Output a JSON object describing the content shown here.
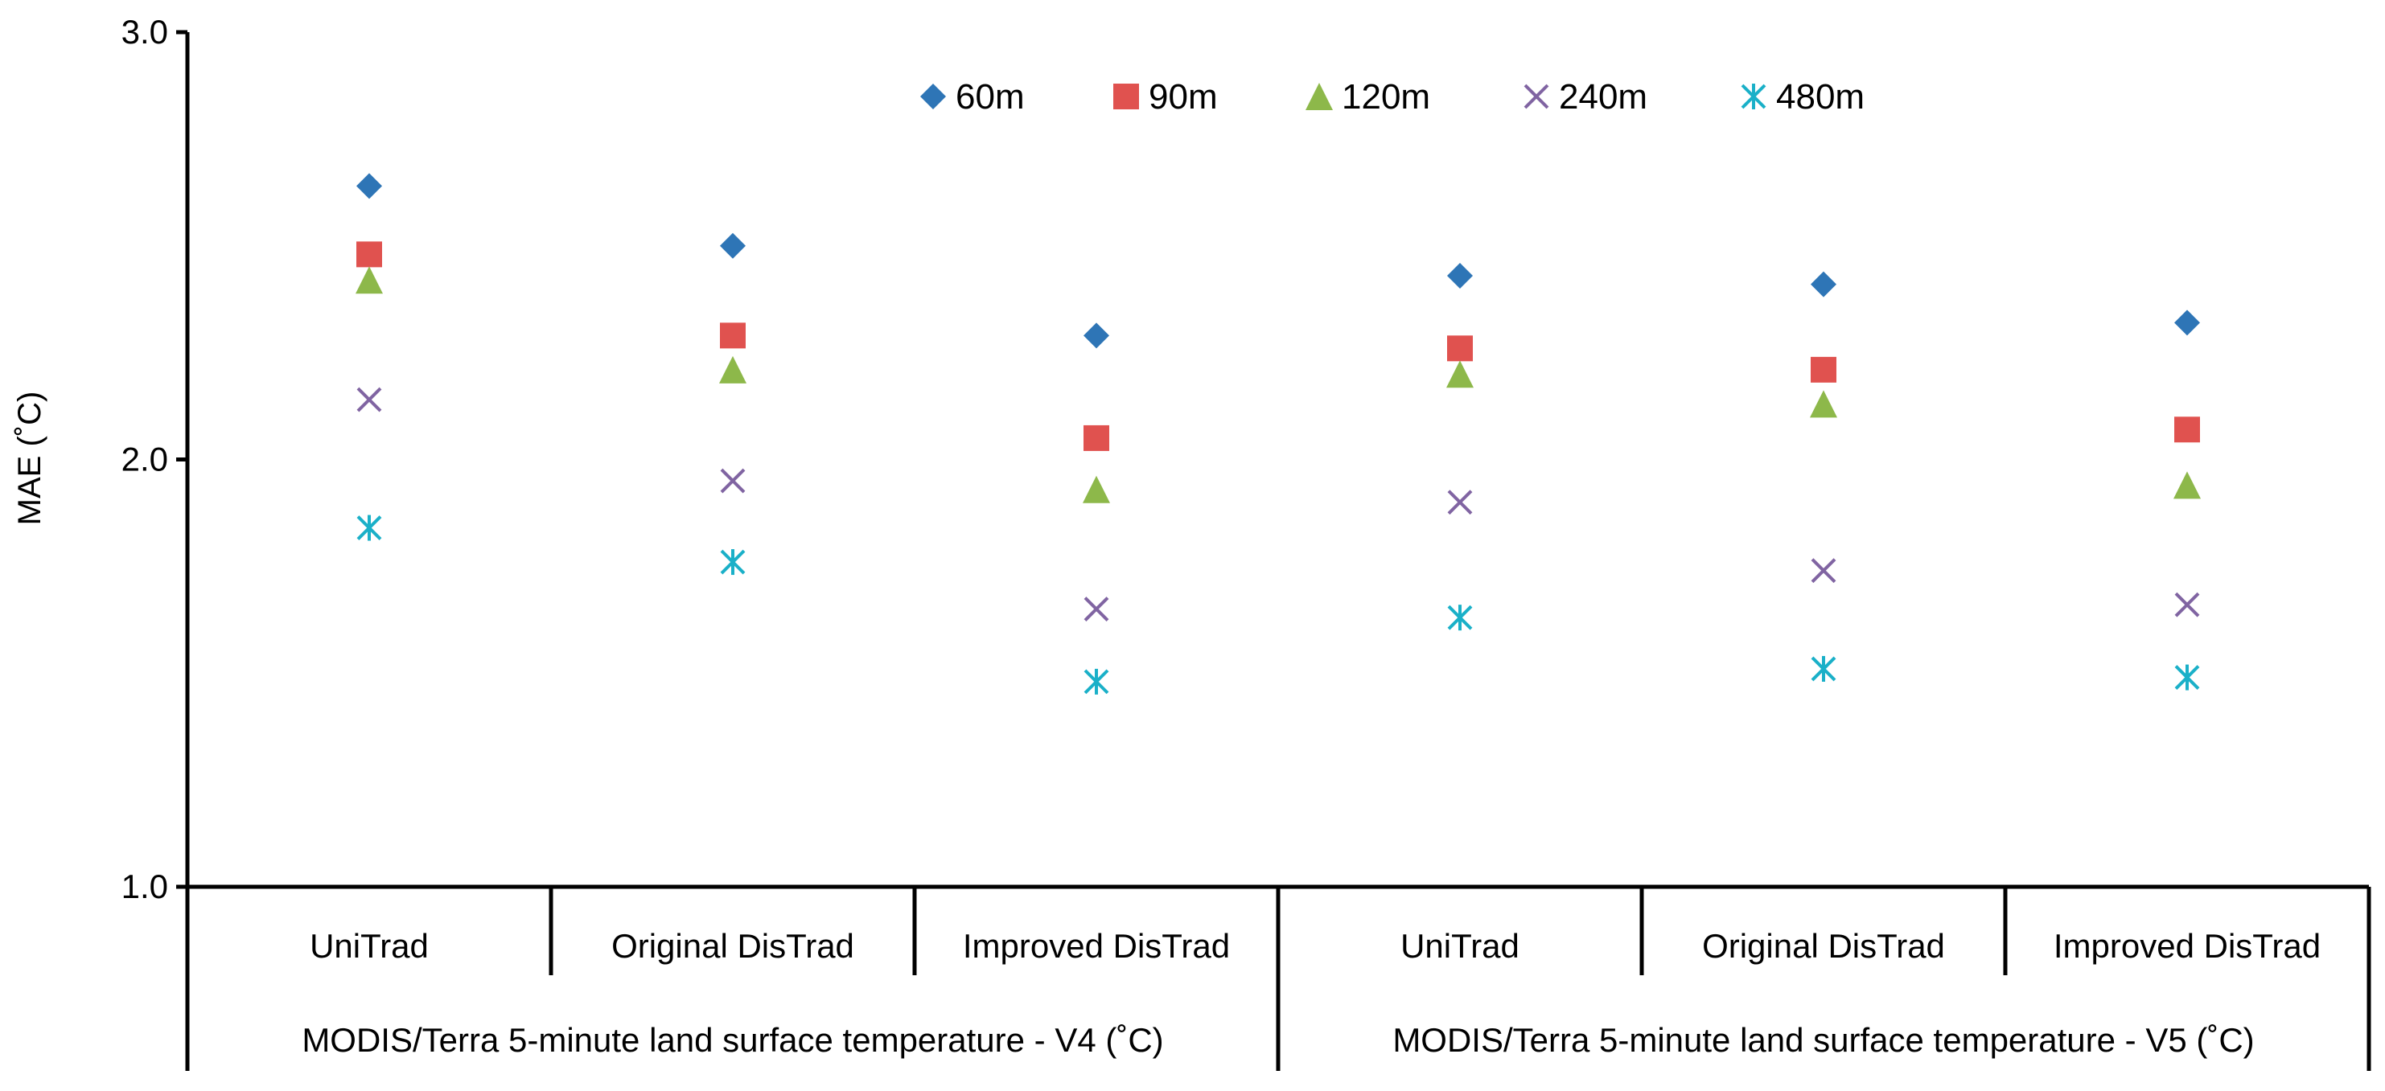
{
  "chart_data": {
    "type": "scatter",
    "title": "",
    "ylabel": "MAE (˚C)",
    "ylim": [
      1.0,
      3.0
    ],
    "yticks": [
      "1.0",
      "2.0",
      "3.0"
    ],
    "categories": [
      "UniTrad",
      "Original DisTrad",
      "Improved DisTrad",
      "UniTrad",
      "Original DisTrad",
      "Improved DisTrad"
    ],
    "groups": [
      {
        "label": "MODIS/Terra 5-minute land surface temperature - V4 (˚C)",
        "span": [
          0,
          2
        ]
      },
      {
        "label": "MODIS/Terra 5-minute land surface temperature - V5 (˚C)",
        "span": [
          3,
          5
        ]
      }
    ],
    "legend_position": "top",
    "series": [
      {
        "name": "60m",
        "marker": "diamond",
        "color": "#2E75B6",
        "values": [
          2.64,
          2.5,
          2.29,
          2.43,
          2.41,
          2.32
        ]
      },
      {
        "name": "90m",
        "marker": "square",
        "color": "#E0524F",
        "values": [
          2.48,
          2.29,
          2.05,
          2.26,
          2.21,
          2.07
        ]
      },
      {
        "name": "120m",
        "marker": "triangle",
        "color": "#8DB84A",
        "values": [
          2.42,
          2.21,
          1.93,
          2.2,
          2.13,
          1.94
        ]
      },
      {
        "name": "240m",
        "marker": "x",
        "color": "#8064A2",
        "values": [
          2.14,
          1.95,
          1.65,
          1.9,
          1.74,
          1.66
        ]
      },
      {
        "name": "480m",
        "marker": "asterisk",
        "color": "#1AB0C8",
        "values": [
          1.84,
          1.76,
          1.48,
          1.63,
          1.51,
          1.49
        ]
      }
    ]
  }
}
